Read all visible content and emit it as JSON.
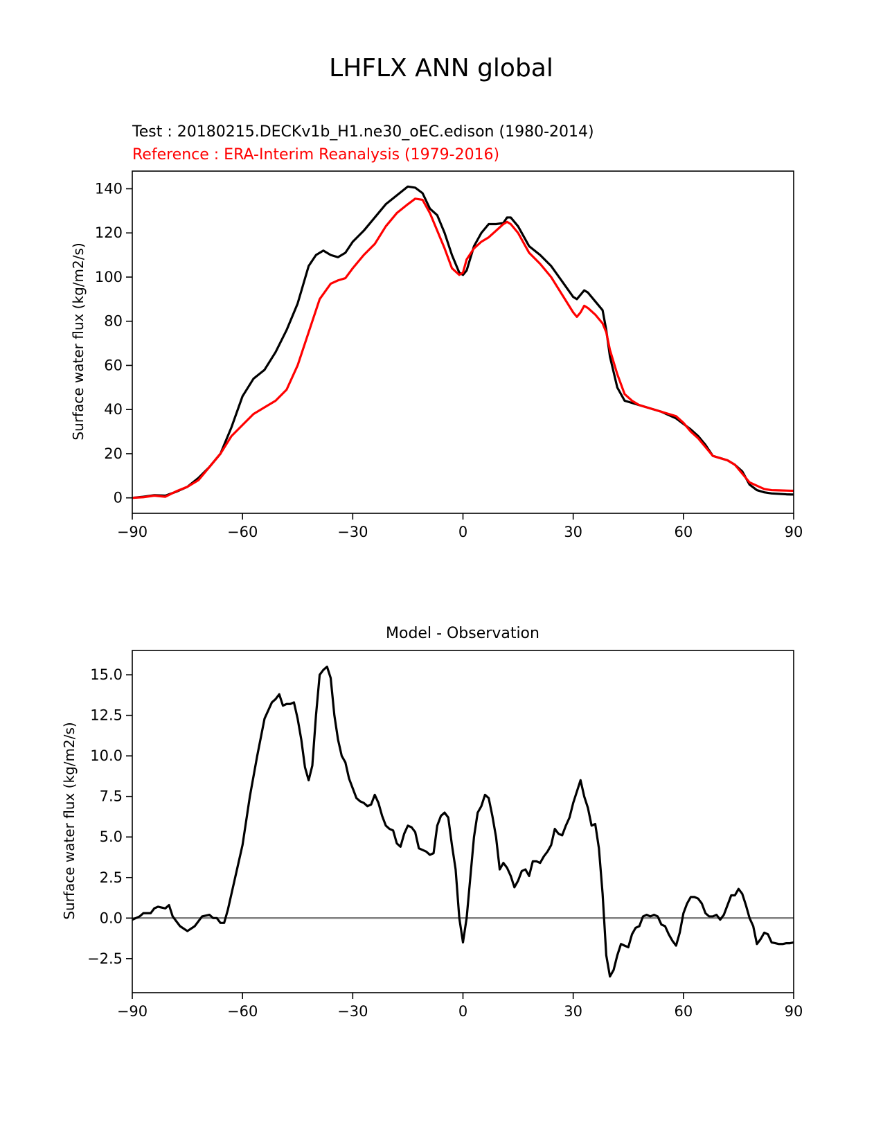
{
  "figure": {
    "suptitle": "LHFLX ANN global"
  },
  "chart_data": [
    {
      "type": "line",
      "title_test": "Test : 20180215.DECKv1b_H1.ne30_oEC.edison (1980-2014)",
      "title_ref": "Reference : ERA-Interim Reanalysis (1979-2016)",
      "xlabel": "",
      "ylabel": "Surface water flux (kg/m2/s)",
      "xlim": [
        -90,
        90
      ],
      "ylim": [
        -7,
        148
      ],
      "xticks": [
        -90,
        -60,
        -30,
        0,
        30,
        60,
        90
      ],
      "xtick_labels": [
        "−90",
        "−60",
        "−30",
        "0",
        "30",
        "60",
        "90"
      ],
      "yticks": [
        0,
        20,
        40,
        60,
        80,
        100,
        120,
        140
      ],
      "ytick_labels": [
        "0",
        "20",
        "40",
        "60",
        "80",
        "100",
        "120",
        "140"
      ],
      "series": [
        {
          "name": "Test",
          "color": "#000000",
          "x": [
            -90,
            -87,
            -84,
            -81,
            -78,
            -75,
            -72,
            -69,
            -66,
            -63,
            -60,
            -57,
            -54,
            -51,
            -48,
            -45,
            -42,
            -40,
            -38,
            -36,
            -34,
            -32,
            -30,
            -27,
            -24,
            -21,
            -18,
            -15,
            -13,
            -11,
            -9,
            -7,
            -5,
            -3,
            -1,
            0,
            1,
            3,
            5,
            7,
            9,
            11,
            12,
            13,
            15,
            18,
            21,
            24,
            27,
            30,
            31,
            32,
            33,
            34,
            36,
            38,
            39,
            40,
            42,
            44,
            46,
            48,
            50,
            54,
            58,
            62,
            64,
            66,
            68,
            70,
            72,
            74,
            76,
            78,
            80,
            82,
            84,
            86,
            88,
            90
          ],
          "values": [
            0,
            0.5,
            1.2,
            1,
            2.8,
            5,
            9,
            14,
            20,
            32,
            46,
            54,
            58,
            66,
            76,
            88,
            105,
            110,
            112,
            110,
            109,
            111,
            116,
            121,
            127,
            133,
            137,
            141,
            140.5,
            138,
            131,
            128,
            120,
            110,
            102,
            101,
            103,
            114,
            120,
            124,
            124,
            124.5,
            127,
            127,
            123,
            114,
            110,
            105,
            98,
            91,
            90,
            92,
            94,
            93,
            89,
            85,
            76,
            64,
            50,
            44,
            43,
            42,
            41,
            39,
            36,
            31,
            28,
            24,
            19,
            18,
            17,
            15,
            12,
            6,
            3.5,
            2.5,
            2,
            1.8,
            1.6,
            1.5
          ]
        },
        {
          "name": "Reference",
          "color": "#ff0000",
          "x": [
            -90,
            -87,
            -84,
            -81,
            -78,
            -75,
            -72,
            -69,
            -66,
            -63,
            -60,
            -57,
            -54,
            -51,
            -48,
            -45,
            -42,
            -39,
            -36,
            -34,
            -32,
            -30,
            -27,
            -24,
            -21,
            -18,
            -15,
            -13,
            -11,
            -9,
            -7,
            -5,
            -3,
            -1,
            0,
            1,
            3,
            5,
            7,
            9,
            11,
            12,
            13,
            15,
            18,
            21,
            24,
            27,
            30,
            31,
            32,
            33,
            34,
            36,
            38,
            39,
            40,
            42,
            44,
            46,
            48,
            50,
            54,
            58,
            60,
            62,
            64,
            66,
            68,
            70,
            72,
            74,
            76,
            78,
            80,
            82,
            84,
            86,
            88,
            90
          ],
          "values": [
            0,
            0.3,
            1,
            0.5,
            3,
            5,
            8,
            14,
            20,
            28,
            33,
            38,
            41,
            44,
            49,
            60,
            75,
            90,
            97,
            98.5,
            99.5,
            104,
            110,
            115,
            123,
            129,
            133,
            135.5,
            135,
            129,
            121,
            113,
            104,
            101,
            102,
            108,
            113,
            116,
            118,
            121,
            124,
            125,
            124,
            120,
            111,
            106,
            100,
            92,
            84,
            82,
            84,
            87,
            86,
            83,
            79,
            75,
            67,
            56,
            47,
            44,
            42,
            41,
            39,
            37,
            34,
            30,
            27,
            23,
            19,
            18,
            17,
            15,
            11,
            7,
            5.5,
            4,
            3.5,
            3.4,
            3.3,
            3.2
          ]
        }
      ]
    },
    {
      "type": "line",
      "title": "Model - Observation",
      "xlabel": "",
      "ylabel": "Surface water flux (kg/m2/s)",
      "xlim": [
        -90,
        90
      ],
      "ylim": [
        -4.6,
        16.5
      ],
      "xticks": [
        -90,
        -60,
        -30,
        0,
        30,
        60,
        90
      ],
      "xtick_labels": [
        "−90",
        "−60",
        "−30",
        "0",
        "30",
        "60",
        "90"
      ],
      "yticks": [
        -2.5,
        0,
        2.5,
        5,
        7.5,
        10,
        12.5,
        15
      ],
      "ytick_labels": [
        "−2.5",
        "0.0",
        "2.5",
        "5.0",
        "7.5",
        "10.0",
        "12.5",
        "15.0"
      ],
      "zero_line": {
        "y": 0,
        "color": "#808080"
      },
      "series": [
        {
          "name": "Model - Observation",
          "color": "#000000",
          "x": [
            -90,
            -88,
            -87,
            -86,
            -85,
            -84,
            -83,
            -81,
            -80,
            -79,
            -78,
            -77,
            -75,
            -73,
            -71,
            -69,
            -68,
            -67,
            -66,
            -65,
            -64,
            -63,
            -62,
            -60,
            -58,
            -56,
            -54,
            -53,
            -52,
            -51,
            -50,
            -49,
            -48,
            -47,
            -46,
            -45,
            -44,
            -43,
            -42,
            -41,
            -40,
            -39,
            -38,
            -37,
            -36,
            -35,
            -34,
            -33,
            -32,
            -31,
            -30,
            -29,
            -28,
            -27,
            -26,
            -25,
            -24,
            -23,
            -22,
            -21,
            -20,
            -19,
            -18,
            -17,
            -16,
            -15,
            -14,
            -13,
            -12,
            -11,
            -10,
            -9,
            -8,
            -7,
            -6,
            -5,
            -4,
            -3,
            -2,
            -1,
            0,
            1,
            2,
            3,
            4,
            5,
            6,
            7,
            8,
            9,
            10,
            11,
            12,
            13,
            14,
            15,
            16,
            17,
            18,
            19,
            20,
            21,
            22,
            23,
            24,
            25,
            26,
            27,
            28,
            29,
            30,
            31,
            32,
            33,
            34,
            35,
            36,
            37,
            38,
            39,
            40,
            41,
            42,
            43,
            44,
            45,
            46,
            47,
            48,
            49,
            50,
            51,
            52,
            53,
            54,
            55,
            56,
            57,
            58,
            59,
            60,
            61,
            62,
            63,
            64,
            65,
            66,
            67,
            68,
            69,
            70,
            71,
            72,
            73,
            74,
            75,
            76,
            77,
            78,
            79,
            80,
            81,
            82,
            83,
            84,
            85,
            86,
            87,
            88,
            89,
            90
          ],
          "values": [
            -0.1,
            0.1,
            0.3,
            0.3,
            0.3,
            0.6,
            0.7,
            0.6,
            0.8,
            0.1,
            -0.2,
            -0.5,
            -0.8,
            -0.5,
            0.1,
            0.2,
            0.0,
            0.0,
            -0.3,
            -0.3,
            0.5,
            1.5,
            2.5,
            4.5,
            7.5,
            10,
            12.3,
            12.8,
            13.3,
            13.5,
            13.8,
            13.1,
            13.2,
            13.2,
            13.3,
            12.3,
            11.0,
            9.3,
            8.5,
            9.4,
            12.5,
            15,
            15.3,
            15.5,
            14.8,
            12.5,
            11,
            10,
            9.6,
            8.6,
            8.0,
            7.4,
            7.2,
            7.1,
            6.9,
            7.0,
            7.6,
            7.1,
            6.3,
            5.7,
            5.5,
            5.4,
            4.6,
            4.4,
            5.2,
            5.7,
            5.6,
            5.3,
            4.3,
            4.2,
            4.1,
            3.9,
            4.0,
            5.7,
            6.3,
            6.5,
            6.2,
            4.5,
            3.0,
            0,
            -1.5,
            0,
            2.5,
            5,
            6.5,
            6.9,
            7.6,
            7.4,
            6.3,
            5.0,
            3.0,
            3.4,
            3.1,
            2.6,
            1.9,
            2.3,
            2.9,
            3.0,
            2.6,
            3.5,
            3.5,
            3.4,
            3.8,
            4.1,
            4.5,
            5.5,
            5.2,
            5.1,
            5.7,
            6.2,
            7.1,
            7.8,
            8.5,
            7.5,
            6.8,
            5.7,
            5.8,
            4.3,
            1.5,
            -2.3,
            -3.6,
            -3.2,
            -2.3,
            -1.6,
            -1.7,
            -1.8,
            -1.0,
            -0.6,
            -0.5,
            0.1,
            0.2,
            0.1,
            0.2,
            0.1,
            -0.4,
            -0.5,
            -1.0,
            -1.4,
            -1.7,
            -0.9,
            0.3,
            0.9,
            1.3,
            1.3,
            1.2,
            0.9,
            0.3,
            0.1,
            0.1,
            0.2,
            -0.1,
            0.2,
            0.8,
            1.4,
            1.4,
            1.8,
            1.5,
            0.8,
            0.0,
            -0.5,
            -1.6,
            -1.3,
            -0.9,
            -1.0,
            -1.5,
            -1.55,
            -1.6,
            -1.6,
            -1.55,
            -1.55,
            -1.5
          ]
        }
      ]
    }
  ]
}
